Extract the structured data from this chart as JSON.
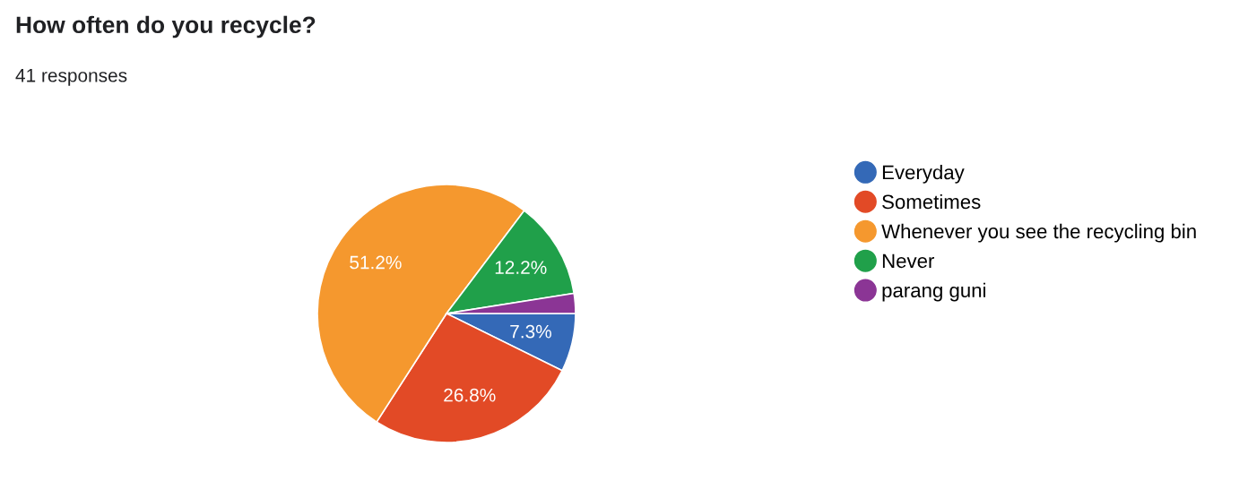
{
  "chart_data": {
    "type": "pie",
    "title": "How often do you recycle?",
    "subtitle": "41 responses",
    "categories": [
      "Everyday",
      "Sometimes",
      "Whenever you see the recycling bin",
      "Never",
      "parang guni"
    ],
    "values": [
      7.3,
      26.8,
      51.2,
      12.2,
      2.5
    ],
    "value_labels": [
      "7.3%",
      "26.8%",
      "51.2%",
      "12.2%",
      null
    ],
    "colors": [
      "#3469b7",
      "#e24a26",
      "#f5982e",
      "#20a04a",
      "#8b3595"
    ],
    "legend": "right"
  }
}
